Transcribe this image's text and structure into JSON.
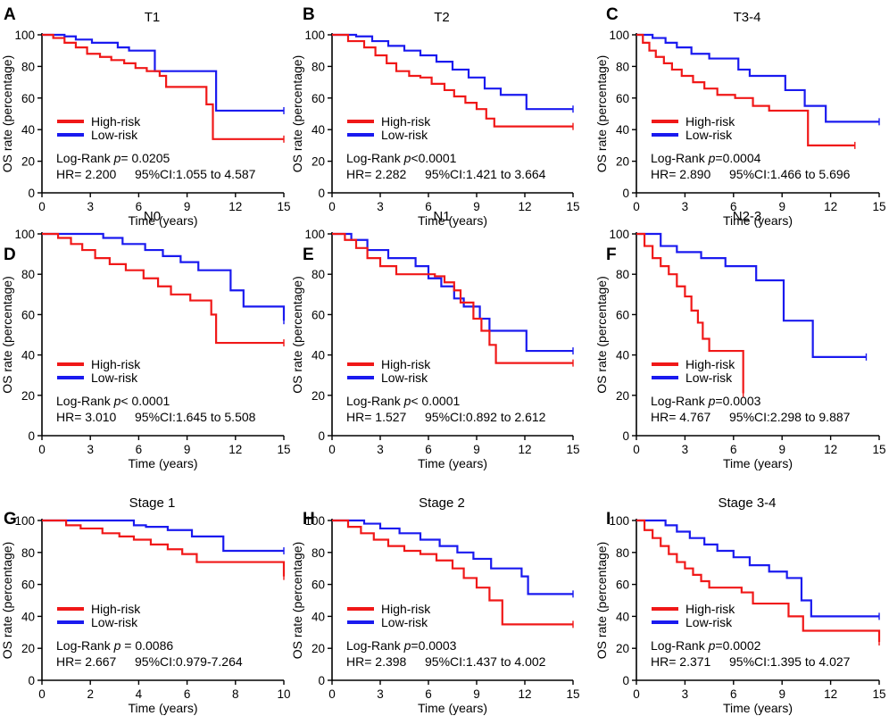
{
  "colors": {
    "high": "#f01818",
    "low": "#1a1aef",
    "axis": "#000000"
  },
  "chart_data": [
    {
      "type": "line",
      "panel": "A",
      "title": "T1",
      "xlabel": "Time (years)",
      "ylabel": "OS rate (percentage)",
      "xlim": [
        0,
        15
      ],
      "ylim": [
        0,
        100
      ],
      "xticks": [
        0,
        3,
        6,
        9,
        12,
        15
      ],
      "yticks": [
        0,
        20,
        40,
        60,
        80,
        100
      ],
      "legend": [
        "High-risk",
        "Low-risk"
      ],
      "stat": {
        "prefix": "Log-Rank ",
        "p": "p",
        "suffix": "= 0.0205",
        "hr": "HR= 2.200",
        "ci": "95%CI:1.055 to 4.587"
      },
      "series": [
        {
          "name": "High-risk",
          "color": "high",
          "x": [
            0,
            0.7,
            1.4,
            2.1,
            2.8,
            3.6,
            4.3,
            5.1,
            5.8,
            6.5,
            7.3,
            7.7,
            9.1,
            10.2,
            10.6,
            15
          ],
          "y": [
            100,
            98,
            95,
            92,
            88,
            86,
            84,
            82,
            79,
            77,
            74,
            67,
            67,
            56,
            34,
            34
          ]
        },
        {
          "name": "Low-risk",
          "color": "low",
          "x": [
            0,
            1.4,
            2.1,
            3.1,
            4.7,
            5.4,
            7.0,
            10.8,
            15
          ],
          "y": [
            100,
            99,
            97,
            95,
            92,
            90,
            77,
            52,
            52
          ]
        }
      ]
    },
    {
      "type": "line",
      "panel": "B",
      "title": "T2",
      "xlabel": "Time (years)",
      "ylabel": "OS rate (percentage)",
      "xlim": [
        0,
        15
      ],
      "ylim": [
        0,
        100
      ],
      "xticks": [
        0,
        3,
        6,
        9,
        12,
        15
      ],
      "yticks": [
        0,
        20,
        40,
        60,
        80,
        100
      ],
      "legend": [
        "High-risk",
        "Low-risk"
      ],
      "stat": {
        "prefix": "Log-Rank ",
        "p": "p",
        "suffix": "<0.0001",
        "hr": "HR= 2.282",
        "ci": "95%CI:1.421 to 3.664"
      },
      "series": [
        {
          "name": "High-risk",
          "color": "high",
          "x": [
            0,
            1.0,
            2.0,
            2.7,
            3.4,
            4.0,
            4.8,
            5.5,
            6.2,
            7.0,
            7.6,
            8.3,
            9.0,
            9.6,
            10.1,
            15
          ],
          "y": [
            100,
            96,
            92,
            87,
            82,
            77,
            74,
            73,
            69,
            65,
            61,
            57,
            53,
            47,
            42,
            42
          ]
        },
        {
          "name": "Low-risk",
          "color": "low",
          "x": [
            0,
            1.5,
            2.5,
            3.5,
            4.5,
            5.5,
            6.5,
            7.5,
            8.5,
            9.5,
            10.5,
            12.1,
            15
          ],
          "y": [
            100,
            99,
            96,
            93,
            90,
            87,
            83,
            78,
            73,
            66,
            62,
            53,
            53
          ]
        }
      ]
    },
    {
      "type": "line",
      "panel": "C",
      "title": "T3-4",
      "xlabel": "Time (years)",
      "ylabel": "OS rate (percentage)",
      "xlim": [
        0,
        15
      ],
      "ylim": [
        0,
        100
      ],
      "xticks": [
        0,
        3,
        6,
        9,
        12,
        15
      ],
      "yticks": [
        0,
        20,
        40,
        60,
        80,
        100
      ],
      "legend": [
        "High-risk",
        "Low-risk"
      ],
      "stat": {
        "prefix": "Log-Rank ",
        "p": "p",
        "suffix": "=0.0004",
        "hr": "HR= 2.890",
        "ci": "95%CI:1.466 to 5.696"
      },
      "series": [
        {
          "name": "High-risk",
          "color": "high",
          "x": [
            0,
            0.4,
            0.8,
            1.2,
            1.7,
            2.2,
            2.8,
            3.5,
            4.2,
            5.0,
            6.1,
            7.2,
            8.2,
            10.6,
            13.5
          ],
          "y": [
            100,
            95,
            90,
            86,
            82,
            78,
            74,
            70,
            66,
            62,
            60,
            55,
            52,
            30,
            30
          ]
        },
        {
          "name": "Low-risk",
          "color": "low",
          "x": [
            0,
            1.0,
            1.8,
            2.5,
            3.4,
            4.5,
            6.3,
            7.0,
            9.2,
            10.4,
            11.7,
            15
          ],
          "y": [
            100,
            98,
            95,
            92,
            88,
            85,
            78,
            74,
            65,
            55,
            45,
            45
          ]
        }
      ]
    },
    {
      "type": "line",
      "panel": "D",
      "title": "N0",
      "xlabel": "Time (years)",
      "ylabel": "OS rate (percentage)",
      "xlim": [
        0,
        15
      ],
      "ylim": [
        0,
        100
      ],
      "xticks": [
        0,
        3,
        6,
        9,
        12,
        15
      ],
      "yticks": [
        0,
        20,
        40,
        60,
        80,
        100
      ],
      "legend": [
        "High-risk",
        "Low-risk"
      ],
      "stat": {
        "prefix": "Log-Rank ",
        "p": "p",
        "suffix": "< 0.0001",
        "hr": "HR= 3.010",
        "ci": "95%CI:1.645 to 5.508"
      },
      "series": [
        {
          "name": "High-risk",
          "color": "high",
          "x": [
            0,
            1.0,
            1.8,
            2.5,
            3.3,
            4.2,
            5.2,
            6.3,
            7.2,
            8.0,
            9.2,
            10.5,
            10.8,
            15
          ],
          "y": [
            100,
            98,
            95,
            92,
            88,
            85,
            82,
            78,
            74,
            70,
            67,
            60,
            46,
            46
          ]
        },
        {
          "name": "Low-risk",
          "color": "low",
          "x": [
            0,
            3.8,
            5.0,
            6.4,
            7.5,
            8.6,
            9.7,
            10.7,
            11.7,
            12.5,
            14.9,
            15
          ],
          "y": [
            100,
            98,
            95,
            92,
            89,
            86,
            82,
            82,
            72,
            64,
            64,
            57
          ]
        }
      ]
    },
    {
      "type": "line",
      "panel": "E",
      "title": "N1",
      "xlabel": "Time (years)",
      "ylabel": "OS rate (percentage)",
      "xlim": [
        0,
        15
      ],
      "ylim": [
        0,
        100
      ],
      "xticks": [
        0,
        3,
        6,
        9,
        12,
        15
      ],
      "yticks": [
        0,
        20,
        40,
        60,
        80,
        100
      ],
      "legend": [
        "High-risk",
        "Low-risk"
      ],
      "stat": {
        "prefix": "Log-Rank ",
        "p": "p",
        "suffix": "< 0.0001",
        "hr": "HR= 1.527",
        "ci": "95%CI:0.892 to 2.612"
      },
      "series": [
        {
          "name": "High-risk",
          "color": "high",
          "x": [
            0,
            0.8,
            1.5,
            2.2,
            3.0,
            4.0,
            6.4,
            7.0,
            7.6,
            8.0,
            8.8,
            9.3,
            9.8,
            10.2,
            15
          ],
          "y": [
            100,
            97,
            93,
            88,
            84,
            80,
            79,
            76,
            72,
            66,
            58,
            52,
            45,
            36,
            36
          ]
        },
        {
          "name": "Low-risk",
          "color": "low",
          "x": [
            0,
            1.2,
            2.2,
            3.5,
            5.2,
            6.0,
            6.8,
            7.6,
            8.2,
            9.2,
            9.8,
            12.1,
            15
          ],
          "y": [
            100,
            97,
            92,
            88,
            84,
            78,
            74,
            68,
            64,
            58,
            52,
            42,
            42
          ]
        }
      ]
    },
    {
      "type": "line",
      "panel": "F",
      "title": "N2-3",
      "xlabel": "Time (years)",
      "ylabel": "OS rate (percentage)",
      "xlim": [
        0,
        15
      ],
      "ylim": [
        0,
        100
      ],
      "xticks": [
        0,
        3,
        6,
        9,
        12,
        15
      ],
      "yticks": [
        0,
        20,
        40,
        60,
        80,
        100
      ],
      "legend": [
        "High-risk",
        "Low-risk"
      ],
      "stat": {
        "prefix": "Log-Rank ",
        "p": "p",
        "suffix": "=0.0003",
        "hr": "HR= 4.767",
        "ci": "95%CI:2.298 to 9.887"
      },
      "series": [
        {
          "name": "High-risk",
          "color": "high",
          "x": [
            0,
            0.5,
            1.0,
            1.5,
            2.0,
            2.5,
            3.0,
            3.4,
            3.8,
            4.1,
            4.5,
            5.0,
            6.4,
            6.6
          ],
          "y": [
            100,
            94,
            88,
            84,
            80,
            74,
            69,
            62,
            56,
            48,
            42,
            42,
            42,
            21
          ]
        },
        {
          "name": "Low-risk",
          "color": "low",
          "x": [
            0,
            1.5,
            2.5,
            4.0,
            5.5,
            7.4,
            9.1,
            10.9,
            14.2
          ],
          "y": [
            100,
            94,
            91,
            88,
            84,
            77,
            57,
            39,
            39
          ]
        }
      ]
    },
    {
      "type": "line",
      "panel": "G",
      "title": "Stage 1",
      "xlabel": "Time (years)",
      "ylabel": "OS rate (percentage)",
      "xlim": [
        0,
        10
      ],
      "ylim": [
        0,
        100
      ],
      "xticks": [
        0,
        2,
        4,
        6,
        8,
        10
      ],
      "yticks": [
        0,
        20,
        40,
        60,
        80,
        100
      ],
      "legend": [
        "High-risk",
        "Low-risk"
      ],
      "stat": {
        "prefix": "Log-Rank ",
        "p": "p",
        "suffix": " = 0.0086",
        "hr": "HR= 2.667",
        "ci": "95%CI:0.979-7.264"
      },
      "series": [
        {
          "name": "High-risk",
          "color": "high",
          "x": [
            0,
            1.0,
            1.6,
            2.5,
            3.2,
            3.8,
            4.5,
            5.2,
            5.8,
            6.4,
            10,
            10
          ],
          "y": [
            100,
            97,
            95,
            92,
            90,
            88,
            85,
            82,
            79,
            74,
            74,
            65
          ]
        },
        {
          "name": "Low-risk",
          "color": "low",
          "x": [
            0,
            2.7,
            3.8,
            4.3,
            5.2,
            6.2,
            7.5,
            10
          ],
          "y": [
            100,
            100,
            97,
            96,
            94,
            90,
            81,
            81
          ]
        }
      ]
    },
    {
      "type": "line",
      "panel": "H",
      "title": "Stage 2",
      "xlabel": "Time (years)",
      "ylabel": "OS rate (percentage)",
      "xlim": [
        0,
        15
      ],
      "ylim": [
        0,
        100
      ],
      "xticks": [
        0,
        3,
        6,
        9,
        12,
        15
      ],
      "yticks": [
        0,
        20,
        40,
        60,
        80,
        100
      ],
      "legend": [
        "High-risk",
        "Low-risk"
      ],
      "stat": {
        "prefix": "Log-Rank ",
        "p": "p",
        "suffix": "=0.0003",
        "hr": "HR= 2.398",
        "ci": "95%CI:1.437 to 4.002"
      },
      "series": [
        {
          "name": "High-risk",
          "color": "high",
          "x": [
            0,
            1.0,
            1.8,
            2.6,
            3.5,
            4.5,
            5.5,
            6.5,
            7.5,
            8.2,
            9.0,
            9.8,
            10.6,
            15
          ],
          "y": [
            100,
            96,
            92,
            88,
            84,
            81,
            79,
            75,
            70,
            64,
            58,
            50,
            35,
            35
          ]
        },
        {
          "name": "Low-risk",
          "color": "low",
          "x": [
            0,
            2.0,
            3.0,
            4.2,
            5.5,
            6.7,
            7.8,
            8.8,
            9.9,
            11.8,
            12.2,
            15
          ],
          "y": [
            100,
            98,
            95,
            92,
            88,
            84,
            80,
            76,
            70,
            65,
            54,
            54
          ]
        }
      ]
    },
    {
      "type": "line",
      "panel": "I",
      "title": "Stage 3-4",
      "xlabel": "Time (years)",
      "ylabel": "OS rate (percentage)",
      "xlim": [
        0,
        15
      ],
      "ylim": [
        0,
        100
      ],
      "xticks": [
        0,
        3,
        6,
        9,
        12,
        15
      ],
      "yticks": [
        0,
        20,
        40,
        60,
        80,
        100
      ],
      "legend": [
        "High-risk",
        "Low-risk"
      ],
      "stat": {
        "prefix": "Log-Rank ",
        "p": "p",
        "suffix": "=0.0002",
        "hr": "HR= 2.371",
        "ci": "95%CI:1.395 to 4.027"
      },
      "series": [
        {
          "name": "High-risk",
          "color": "high",
          "x": [
            0,
            0.5,
            1.0,
            1.5,
            2.0,
            2.5,
            3.0,
            3.5,
            4.0,
            4.5,
            6.5,
            7.2,
            9.4,
            10.3,
            15,
            15
          ],
          "y": [
            100,
            94,
            89,
            84,
            79,
            74,
            70,
            66,
            62,
            58,
            55,
            48,
            40,
            31,
            31,
            24
          ]
        },
        {
          "name": "Low-risk",
          "color": "low",
          "x": [
            0,
            1.8,
            2.5,
            3.3,
            4.2,
            5.0,
            6.0,
            7.0,
            8.2,
            9.3,
            10.2,
            10.8,
            15
          ],
          "y": [
            100,
            97,
            93,
            89,
            85,
            81,
            77,
            72,
            68,
            64,
            50,
            40,
            40
          ]
        }
      ]
    }
  ]
}
